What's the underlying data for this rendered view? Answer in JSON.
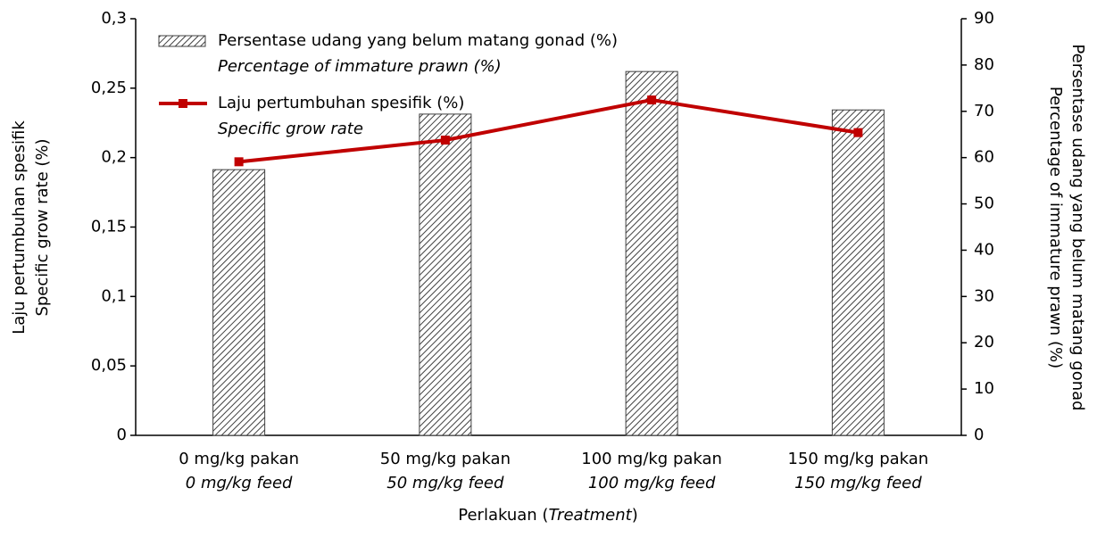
{
  "chart_data": {
    "type": "bar",
    "categories": [
      "0 mg/kg pakan",
      "50 mg/kg pakan",
      "100 mg/kg pakan",
      "150 mg/kg pakan"
    ],
    "categories_en": [
      "0 mg/kg feed",
      "50 mg/kg feed",
      "100 mg/kg feed",
      "150 mg/kg feed"
    ],
    "y_label": [
      "Laju pertumbuhan spesifik",
      "Specific grow rate (%)"
    ],
    "y2_label": [
      "Persentase udang yang belum matang gonad",
      "Percentage of immature prawn (%)"
    ],
    "x_label": [
      "Perlakuan (",
      "Treatment",
      ")"
    ],
    "ylim": [
      0,
      0.3
    ],
    "yticks": [
      0,
      {
        "value": 0.05,
        "label": "0,05"
      },
      {
        "value": 0.1,
        "label": "0,1"
      },
      {
        "value": 0.15,
        "label": "0,15"
      },
      {
        "value": 0.2,
        "label": "0,2"
      },
      {
        "value": 0.25,
        "label": "0,25"
      },
      {
        "value": 0.3,
        "label": "0,3"
      }
    ],
    "y2lim": [
      0,
      90
    ],
    "y2ticks": [
      0,
      10,
      20,
      30,
      40,
      50,
      60,
      70,
      80,
      90
    ],
    "series": [
      {
        "name": "Persentase udang yang belum matang gonad (%)",
        "name_en": "Percentage of immature prawn (%)",
        "type": "bar",
        "axis": "y2",
        "color": "#404040",
        "values": [
          57.4,
          69.4,
          78.6,
          70.3
        ]
      },
      {
        "name": "Laju pertumbuhan spesifik (%)",
        "name_en": "Specific grow rate",
        "type": "line",
        "axis": "y",
        "color": "#c00000",
        "values": [
          0.197,
          0.2126,
          0.2415,
          0.218
        ]
      }
    ]
  }
}
